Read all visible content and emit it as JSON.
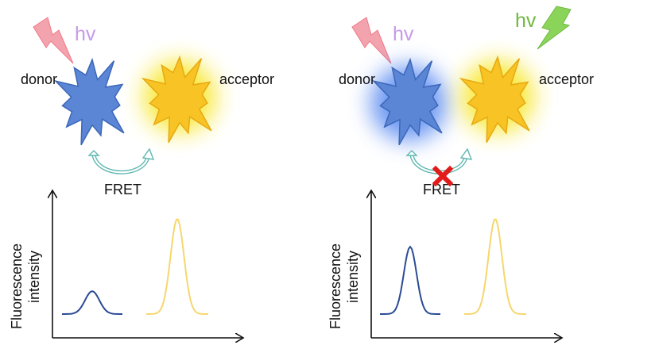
{
  "panels": [
    {
      "hv_label": "hv",
      "donor_label": "donor",
      "acceptor_label": "acceptor",
      "fret_label": "FRET",
      "y_axis_label_line1": "Fluorescence",
      "y_axis_label_line2": "intensity",
      "donor_peak_relative": 0.18,
      "acceptor_peak_relative": 0.75,
      "fret_blocked": false
    },
    {
      "hv_label": "hv",
      "hv2_label": "hv",
      "donor_label": "donor",
      "acceptor_label": "acceptor",
      "fret_label": "FRET",
      "y_axis_label_line1": "Fluorescence",
      "y_axis_label_line2": "intensity",
      "donor_peak_relative": 0.53,
      "acceptor_peak_relative": 0.75,
      "fret_blocked": true
    }
  ],
  "colors": {
    "donor": "#5b86d6",
    "acceptor": "#f7c325",
    "donor_curve": "#2b4b93",
    "acceptor_curve": "#f5d76e",
    "excitation_red": "#ee6b7a",
    "excitation_green": "#7cc441",
    "hv_violet": "#c79be8",
    "hv_green": "#71b843",
    "fret_arrow": "#5fb8b0",
    "block_cross": "#e21b1b"
  }
}
